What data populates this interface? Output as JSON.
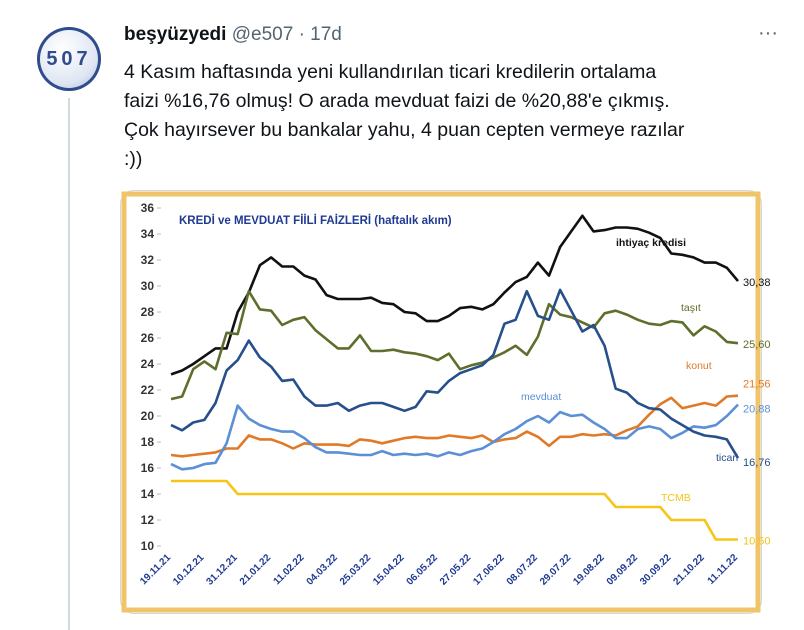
{
  "tweet": {
    "author": "beşyüzyedi",
    "handle": "@e507",
    "time": "· 17d",
    "avatar_text": "507",
    "menu": "···",
    "text_lines": [
      "4 Kasım haftasında yeni kullandırılan ticari kredilerin ortalama",
      "faizi %16,76 olmuş! O arada mevduat faizi de %20,88'e çıkmış.",
      "Çok hayırsever bu bankalar yahu, 4 puan cepten vermeye razılar",
      ":))"
    ]
  },
  "chart_data": {
    "type": "line",
    "title": "KREDİ ve MEVDUAT FİİLİ FAİZLERİ (haftalık akım)",
    "categories": [
      "19.11.21",
      null,
      null,
      "10.12.21",
      null,
      null,
      "31.12.21",
      null,
      null,
      "21.01.22",
      null,
      null,
      "11.02.22",
      null,
      null,
      "04.03.22",
      null,
      null,
      "25.03.22",
      null,
      null,
      "15.04.22",
      null,
      null,
      "06.05.22",
      null,
      null,
      "27.05.22",
      null,
      null,
      "17.06.22",
      null,
      null,
      "08.07.22",
      null,
      null,
      "29.07.22",
      null,
      null,
      "19.08.22",
      null,
      null,
      "09.09.22",
      null,
      null,
      "30.09.22",
      null,
      null,
      "21.10.22",
      null,
      null,
      "11.11.22"
    ],
    "ylim": [
      10,
      36
    ],
    "yticks": [
      10,
      12,
      14,
      16,
      18,
      20,
      22,
      24,
      26,
      28,
      30,
      32,
      34,
      36
    ],
    "grid": false,
    "series": [
      {
        "name": "ihtiyaç kredisi",
        "color": "#111111",
        "end_label": "30,38",
        "values": [
          23.2,
          23.5,
          24.0,
          24.6,
          25.2,
          25.2,
          28.0,
          29.5,
          31.6,
          32.2,
          31.5,
          31.5,
          30.8,
          30.5,
          29.3,
          29.0,
          29.0,
          29.0,
          29.1,
          28.7,
          28.6,
          28.0,
          27.9,
          27.3,
          27.3,
          27.7,
          28.3,
          28.4,
          28.2,
          28.6,
          29.5,
          30.3,
          30.7,
          31.8,
          30.8,
          33.0,
          34.2,
          35.4,
          34.2,
          34.3,
          34.5,
          34.5,
          34.4,
          34.1,
          33.7,
          32.5,
          32.4,
          32.2,
          31.8,
          31.8,
          31.4,
          30.38
        ]
      },
      {
        "name": "taşıt",
        "color": "#5e6e2c",
        "end_label": "25,60",
        "values": [
          21.3,
          21.5,
          23.6,
          24.2,
          23.6,
          26.4,
          26.3,
          29.6,
          28.2,
          28.1,
          27.0,
          27.4,
          27.6,
          26.6,
          25.9,
          25.2,
          25.2,
          26.2,
          25.0,
          25.0,
          25.1,
          24.9,
          24.8,
          24.6,
          24.3,
          24.8,
          23.6,
          23.9,
          24.1,
          24.5,
          24.9,
          25.4,
          24.7,
          26.1,
          28.6,
          27.8,
          27.6,
          27.2,
          26.8,
          27.9,
          28.1,
          27.8,
          27.4,
          27.1,
          27.0,
          27.3,
          27.2,
          26.2,
          26.9,
          26.5,
          25.7,
          25.6
        ]
      },
      {
        "name": "konut",
        "color": "#e07a28",
        "end_label": "21,56",
        "values": [
          17.0,
          16.9,
          17.0,
          17.1,
          17.2,
          17.5,
          17.5,
          18.5,
          18.2,
          18.2,
          17.9,
          17.5,
          17.9,
          17.8,
          17.8,
          17.8,
          17.7,
          18.2,
          18.1,
          17.9,
          18.1,
          18.3,
          18.4,
          18.3,
          18.3,
          18.5,
          18.4,
          18.3,
          18.5,
          18.0,
          18.2,
          18.3,
          18.8,
          18.4,
          17.7,
          18.4,
          18.4,
          18.6,
          18.5,
          18.6,
          18.5,
          18.9,
          19.2,
          20.1,
          20.9,
          21.4,
          20.6,
          20.8,
          21.0,
          20.8,
          21.5,
          21.56
        ]
      },
      {
        "name": "mevduat",
        "color": "#5b8fd6",
        "end_label": "20,88",
        "values": [
          16.3,
          15.9,
          16.0,
          16.3,
          16.4,
          17.9,
          20.8,
          19.8,
          19.3,
          19.0,
          18.8,
          18.8,
          18.3,
          17.6,
          17.2,
          17.2,
          17.1,
          17.0,
          17.0,
          17.3,
          17.0,
          17.1,
          17.0,
          17.1,
          16.9,
          17.2,
          17.0,
          17.3,
          17.5,
          18.0,
          18.6,
          19.0,
          19.6,
          20.0,
          19.5,
          20.3,
          20.0,
          20.1,
          19.5,
          19.0,
          18.3,
          18.3,
          19.0,
          19.2,
          19.0,
          18.3,
          18.7,
          19.2,
          19.1,
          19.3,
          20.0,
          20.88
        ]
      },
      {
        "name": "ticari",
        "color": "#264f8c",
        "end_label": "16,76",
        "values": [
          19.3,
          18.9,
          19.5,
          19.7,
          21.0,
          23.5,
          24.3,
          25.8,
          24.5,
          23.8,
          22.7,
          22.8,
          21.5,
          20.8,
          20.8,
          21.0,
          20.4,
          20.8,
          21.0,
          21.0,
          20.7,
          20.4,
          20.7,
          21.9,
          21.8,
          22.7,
          23.3,
          23.6,
          23.9,
          24.7,
          27.1,
          27.4,
          29.6,
          27.7,
          27.4,
          29.7,
          28.1,
          26.5,
          27.0,
          25.4,
          22.1,
          21.8,
          21.0,
          20.6,
          20.5,
          19.8,
          19.3,
          18.8,
          18.5,
          18.4,
          18.2,
          16.76
        ]
      },
      {
        "name": "TCMB",
        "color": "#f5c518",
        "end_label": "10,50",
        "values": [
          15,
          15,
          15,
          15,
          15,
          15,
          14,
          14,
          14,
          14,
          14,
          14,
          14,
          14,
          14,
          14,
          14,
          14,
          14,
          14,
          14,
          14,
          14,
          14,
          14,
          14,
          14,
          14,
          14,
          14,
          14,
          14,
          14,
          14,
          14,
          14,
          14,
          14,
          14,
          14,
          13,
          13,
          13,
          13,
          13,
          12,
          12,
          12,
          12,
          10.5,
          10.5,
          10.5
        ]
      }
    ]
  }
}
